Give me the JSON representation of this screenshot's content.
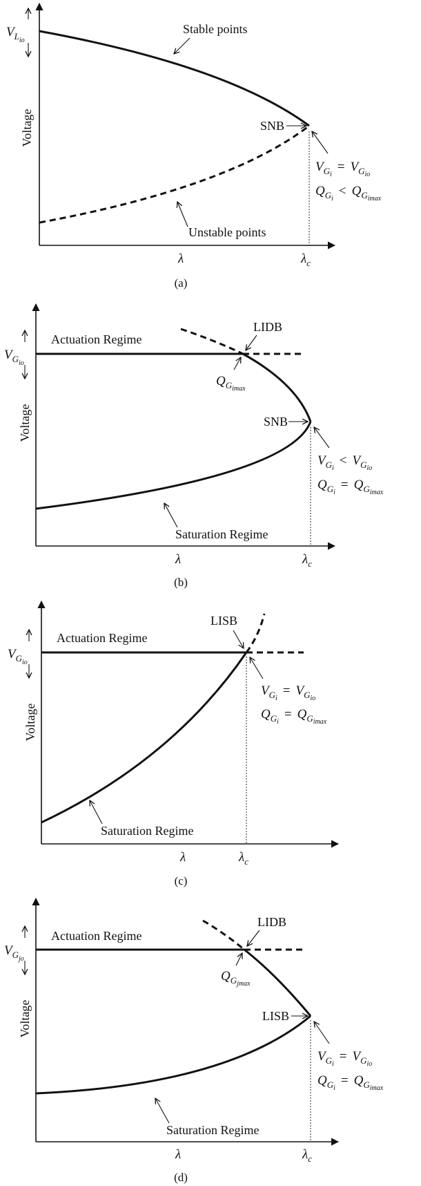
{
  "axis_labels": {
    "voltage": "Voltage",
    "lambda": "λ",
    "lambda_c": "λ",
    "lambda_c_sub": "c"
  },
  "panel_a": {
    "caption": "(a)",
    "v_level": "V",
    "v_level_sub": "L",
    "v_level_sub2": "io",
    "stable": "Stable points",
    "unstable": "Unstable points",
    "snb": "SNB",
    "cond1": {
      "lhs": "V",
      "lhs_sub": "G",
      "lhs_sub2": "i",
      "op": "=",
      "rhs": "V",
      "rhs_sub": "G",
      "rhs_sub2": "io"
    },
    "cond2": {
      "lhs": "Q",
      "lhs_sub": "G",
      "lhs_sub2": "i",
      "op": "<",
      "rhs": "Q",
      "rhs_sub": "G",
      "rhs_sub2": "imax"
    }
  },
  "panel_b": {
    "caption": "(b)",
    "v_level": "V",
    "v_level_sub": "G",
    "v_level_sub2": "io",
    "actuation": "Actuation Regime",
    "saturation": "Saturation Regime",
    "lidb": "LIDB",
    "snb": "SNB",
    "qmax": {
      "q": "Q",
      "sub": "G",
      "sub2": "imax"
    },
    "cond1": {
      "lhs": "V",
      "lhs_sub": "G",
      "lhs_sub2": "i",
      "op": "<",
      "rhs": "V",
      "rhs_sub": "G",
      "rhs_sub2": "io"
    },
    "cond2": {
      "lhs": "Q",
      "lhs_sub": "G",
      "lhs_sub2": "i",
      "op": "=",
      "rhs": "Q",
      "rhs_sub": "G",
      "rhs_sub2": "imax"
    }
  },
  "panel_c": {
    "caption": "(c)",
    "v_level": "V",
    "v_level_sub": "G",
    "v_level_sub2": "io",
    "actuation": "Actuation Regime",
    "saturation": "Saturation Regime",
    "lisb": "LISB",
    "cond1": {
      "lhs": "V",
      "lhs_sub": "G",
      "lhs_sub2": "i",
      "op": "=",
      "rhs": "V",
      "rhs_sub": "G",
      "rhs_sub2": "io"
    },
    "cond2": {
      "lhs": "Q",
      "lhs_sub": "G",
      "lhs_sub2": "i",
      "op": "=",
      "rhs": "Q",
      "rhs_sub": "G",
      "rhs_sub2": "imax"
    }
  },
  "panel_d": {
    "caption": "(d)",
    "v_level": "V",
    "v_level_sub": "G",
    "v_level_sub2": "jo",
    "actuation": "Actuation Regime",
    "saturation": "Saturation Regime",
    "lidb": "LIDB",
    "lisb": "LISB",
    "qmax": {
      "q": "Q",
      "sub": "G",
      "sub2": "jmax"
    },
    "cond1": {
      "lhs": "V",
      "lhs_sub": "G",
      "lhs_sub2": "i",
      "op": "=",
      "rhs": "V",
      "rhs_sub": "G",
      "rhs_sub2": "io"
    },
    "cond2": {
      "lhs": "Q",
      "lhs_sub": "G",
      "lhs_sub2": "i",
      "op": "=",
      "rhs": "Q",
      "rhs_sub": "G",
      "rhs_sub2": "imax"
    }
  }
}
